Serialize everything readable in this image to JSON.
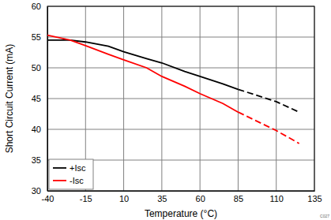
{
  "chart_data": {
    "type": "line",
    "x_label": "Temperature (°C)",
    "y_label": "Short Circuit Current (mA)",
    "annotations": [
      "C027"
    ],
    "x": [
      -40,
      -25,
      -15,
      0,
      10,
      25,
      35,
      50,
      60,
      75,
      85,
      100,
      110,
      125
    ],
    "series": [
      {
        "name": "+Isc",
        "color": "#000000",
        "line_style": "solid",
        "values": [
          54.5,
          54.5,
          54.2,
          53.5,
          52.6,
          51.5,
          50.8,
          49.4,
          48.6,
          47.4,
          46.5,
          null,
          null,
          null
        ]
      },
      {
        "name": "-Isc",
        "color": "#ff0000",
        "line_style": "solid",
        "values": [
          55.3,
          54.5,
          53.6,
          52.2,
          51.3,
          50.0,
          48.6,
          47.0,
          45.8,
          44.2,
          42.8,
          null,
          null,
          null
        ]
      },
      {
        "color": "#000000",
        "line_style": "dashed",
        "values": [
          null,
          null,
          null,
          null,
          null,
          null,
          null,
          null,
          null,
          null,
          46.5,
          45.3,
          44.5,
          42.8
        ]
      },
      {
        "color": "#ff0000",
        "line_style": "dashed",
        "values": [
          null,
          null,
          null,
          null,
          null,
          null,
          null,
          null,
          null,
          null,
          42.8,
          41.0,
          39.8,
          37.7
        ]
      }
    ],
    "xlim": [
      -40,
      135
    ],
    "xticks": [
      -40,
      -15,
      10,
      35,
      60,
      85,
      110,
      135
    ],
    "ylim": [
      30,
      60
    ],
    "yticks": [
      30,
      35,
      40,
      45,
      50,
      55,
      60
    ],
    "grid": true,
    "legend": "bottom-left"
  }
}
